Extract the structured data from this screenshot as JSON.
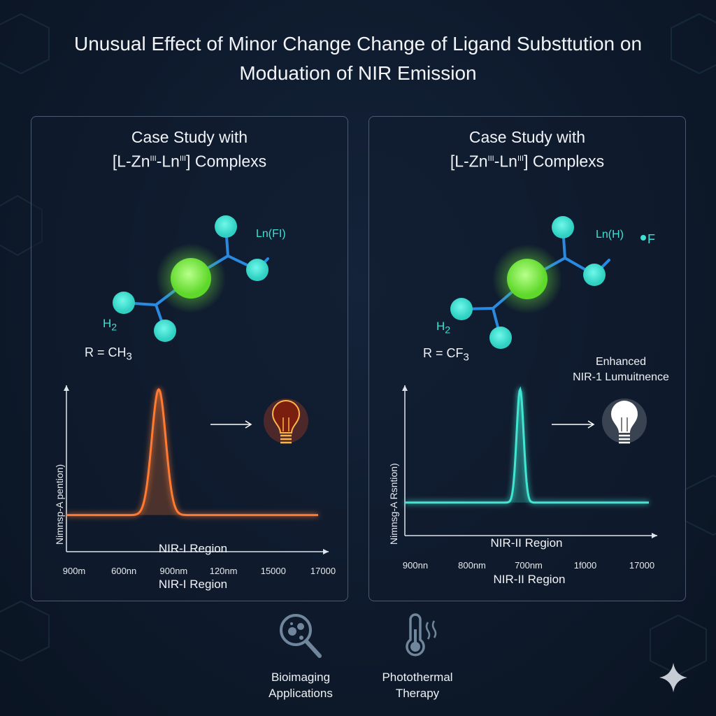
{
  "title_line1": "Unusual Effect of Minor Change Change of Ligand Substtution on",
  "title_line2": "Moduation of NIR Emission",
  "panels": [
    {
      "title_line1": "Case Study with",
      "title_prefix": "[L-Zn",
      "sup1": "III",
      "title_mid": "-Ln",
      "sup2": "III",
      "title_suffix": "] Complexs",
      "ln_label": "Ln(FI)",
      "h_label": "H",
      "h_sub": "2",
      "r_label": "R = CH",
      "r_sub": "3",
      "bulb_icon": "lightbulb-icon-orange",
      "accent": "#ff6a2a"
    },
    {
      "title_line1": "Case Study with",
      "title_prefix": "[L-Zn",
      "sup1": "III",
      "title_mid": "-Ln",
      "sup2": "III",
      "title_suffix": "] Complexs",
      "ln_label": "Ln(H)",
      "f_label": "F",
      "h_label": "H",
      "h_sub": "2",
      "r_label": "R = CF",
      "r_sub": "3",
      "enhanced_line1": "Enhanced",
      "enhanced_line2": "NIR-1 Lumuitnence",
      "bulb_icon": "lightbulb-icon-white",
      "accent": "#3fe6d2"
    }
  ],
  "chart_data": [
    {
      "type": "line",
      "title": "",
      "ylabel": "Nimnsp-A pention)",
      "xlabel": "NIR-I Region",
      "inner_label": "NIR-I Region",
      "x_tick_labels": [
        "900m",
        "600nn",
        "900nm",
        "120nm",
        "15000",
        "17000"
      ],
      "series": [
        {
          "color": "#ff7a30",
          "peak_between_ticks": [
            1,
            2
          ],
          "peak_position": 0.7,
          "baseline_relative": 0.2,
          "peak_relative": 1.0
        }
      ],
      "grid": false
    },
    {
      "type": "line",
      "title": "",
      "ylabel": "Nimnsg-A Rsntion)",
      "xlabel": "NIR-II Region",
      "inner_label": "NIR-II Region",
      "x_tick_labels": [
        "900nn",
        "800nm",
        "700nm",
        "1f000",
        "17000"
      ],
      "series": [
        {
          "color": "#3fe6d2",
          "peak_between_ticks": [
            1,
            2
          ],
          "peak_position": 0.85,
          "baseline_relative": 0.2,
          "peak_relative": 1.0
        }
      ],
      "grid": false
    }
  ],
  "applications": [
    {
      "icon": "magnifier-cells-icon",
      "line1": "Bioimaging",
      "line2": "Applications"
    },
    {
      "icon": "thermometer-heat-icon",
      "line1": "Photothermal",
      "line2": "Therapy"
    }
  ],
  "colors": {
    "background": "#0e1a2c",
    "molecule_atom": "#3fe6d2",
    "molecule_center": "#7be83a",
    "bond": "#2a8ae0"
  }
}
